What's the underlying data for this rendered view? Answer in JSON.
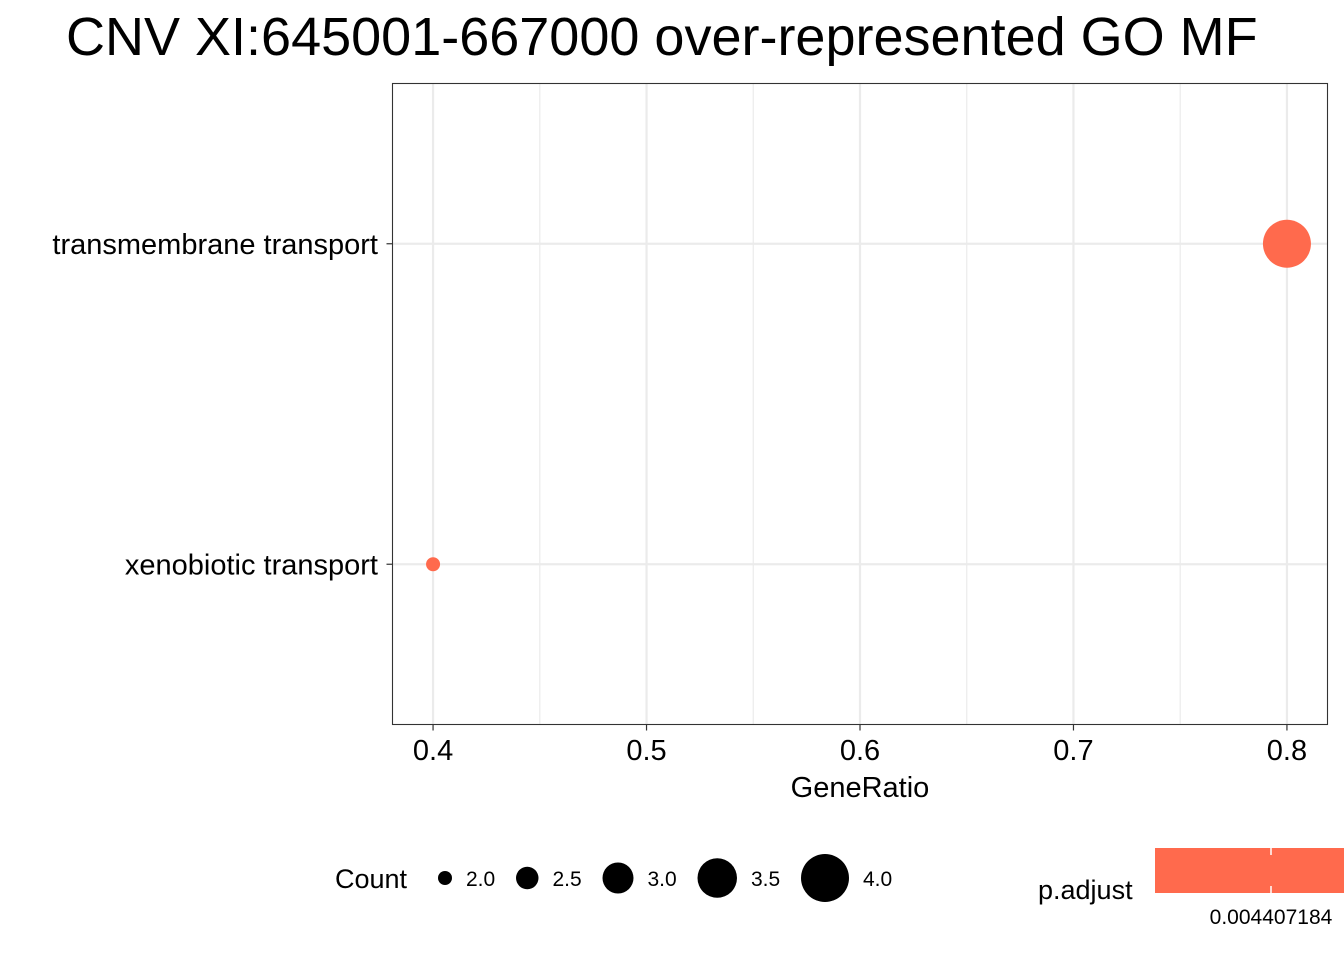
{
  "chart_data": {
    "type": "scatter",
    "title": "CNV XI:645001-667000 over-represented GO MF",
    "xlabel": "GeneRatio",
    "ylabel": "",
    "xlim": [
      0.381,
      0.819
    ],
    "x_ticks": [
      0.4,
      0.5,
      0.6,
      0.7,
      0.8
    ],
    "x_tick_labels": [
      "0.4",
      "0.5",
      "0.6",
      "0.7",
      "0.8"
    ],
    "categories": [
      "transmembrane transport",
      "xenobiotic transport"
    ],
    "points": [
      {
        "term": "transmembrane transport",
        "gene_ratio": 0.8,
        "count": 4,
        "p_adjust": 0.004407184
      },
      {
        "term": "xenobiotic transport",
        "gene_ratio": 0.4,
        "count": 2,
        "p_adjust": 0.004407184
      }
    ],
    "grid": true,
    "point_color": "#FF6A4D",
    "legend": {
      "placement": "bottom",
      "size_title": "Count",
      "size_values": [
        2.0,
        2.5,
        3.0,
        3.5,
        4.0
      ],
      "size_labels": [
        "2.0",
        "2.5",
        "3.0",
        "3.5",
        "4.0"
      ],
      "color_title": "p.adjust",
      "color_label": "0.004407184",
      "color": "#FF6A4D"
    }
  }
}
